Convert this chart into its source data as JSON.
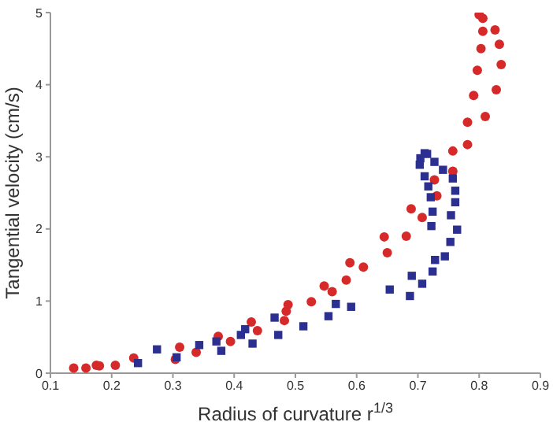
{
  "chart_data": {
    "type": "scatter",
    "xlabel": "Radius of curvature r$^{1/3}$",
    "ylabel": "Tangential velocity (cm/s)",
    "xlim": [
      0.1,
      0.9
    ],
    "ylim": [
      0,
      5
    ],
    "xticks": [
      0.1,
      0.2,
      0.3,
      0.4,
      0.5,
      0.6,
      0.7,
      0.8,
      0.9
    ],
    "yticks": [
      0,
      1,
      2,
      3,
      4,
      5
    ],
    "grid": false,
    "legend": false,
    "series": [
      {
        "color": "#d62a2a",
        "marker": "circle",
        "x": [
          0.138,
          0.158,
          0.175,
          0.18,
          0.206,
          0.236,
          0.304,
          0.311,
          0.338,
          0.374,
          0.394,
          0.428,
          0.438,
          0.482,
          0.485,
          0.488,
          0.526,
          0.547,
          0.56,
          0.583,
          0.589,
          0.611,
          0.645,
          0.65,
          0.681,
          0.689,
          0.707,
          0.731,
          0.727,
          0.757,
          0.757,
          0.781,
          0.781,
          0.81,
          0.791,
          0.828,
          0.797,
          0.836,
          0.803,
          0.833,
          0.806,
          0.826,
          0.806,
          0.8
        ],
        "values": [
          0.07,
          0.07,
          0.11,
          0.1,
          0.11,
          0.21,
          0.19,
          0.36,
          0.29,
          0.51,
          0.44,
          0.71,
          0.59,
          0.73,
          0.86,
          0.95,
          0.99,
          1.21,
          1.13,
          1.29,
          1.53,
          1.47,
          1.89,
          1.67,
          1.9,
          2.28,
          2.16,
          2.46,
          2.68,
          2.8,
          3.08,
          3.17,
          3.48,
          3.56,
          3.85,
          3.93,
          4.2,
          4.28,
          4.5,
          4.56,
          4.74,
          4.76,
          4.92,
          4.97
        ]
      },
      {
        "color": "#2b2f8f",
        "marker": "square",
        "x": [
          0.243,
          0.274,
          0.306,
          0.343,
          0.371,
          0.379,
          0.411,
          0.418,
          0.43,
          0.466,
          0.472,
          0.513,
          0.554,
          0.566,
          0.591,
          0.654,
          0.687,
          0.69,
          0.707,
          0.724,
          0.728,
          0.744,
          0.753,
          0.764,
          0.722,
          0.754,
          0.724,
          0.761,
          0.721,
          0.761,
          0.757,
          0.717,
          0.711,
          0.741,
          0.727,
          0.703,
          0.704,
          0.711,
          0.715
        ],
        "values": [
          0.14,
          0.33,
          0.22,
          0.39,
          0.44,
          0.31,
          0.53,
          0.61,
          0.41,
          0.77,
          0.53,
          0.65,
          0.79,
          0.96,
          0.92,
          1.16,
          1.07,
          1.35,
          1.24,
          1.41,
          1.57,
          1.62,
          1.82,
          1.99,
          2.04,
          2.19,
          2.24,
          2.37,
          2.44,
          2.53,
          2.7,
          2.59,
          2.73,
          2.82,
          2.93,
          2.89,
          2.98,
          3.05,
          3.04
        ]
      }
    ]
  }
}
